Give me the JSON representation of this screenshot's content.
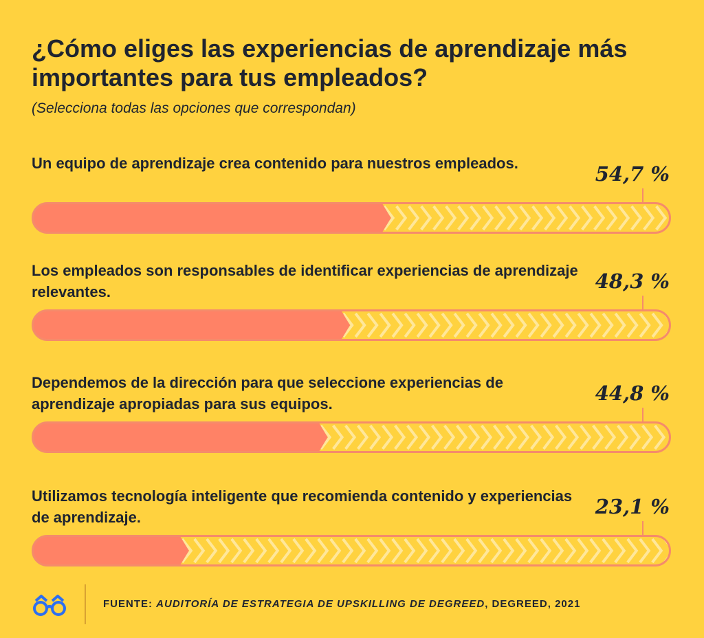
{
  "chart_data": {
    "type": "bar",
    "title": "¿Cómo eliges las experiencias de aprendizaje más importantes para tus empleados?",
    "subtitle": "(Selecciona todas las opciones que correspondan)",
    "categories": [
      "Un equipo de aprendizaje crea contenido para nuestros empleados.",
      "Los empleados son responsables de identificar experiencias de aprendizaje relevantes.",
      "Dependemos de la dirección para que seleccione experiencias de aprendizaje apropiadas para sus equipos.",
      "Utilizamos tecnología inteligente que recomienda contenido y experiencias de aprendizaje."
    ],
    "values": [
      54.7,
      48.3,
      44.8,
      23.1
    ],
    "value_labels": [
      "54,7 %",
      "48,3 %",
      "44,8 %",
      "23,1 %"
    ],
    "xlim": [
      0,
      100
    ],
    "grid": false,
    "colors": {
      "background": "#FFD23F",
      "bar_fill": "#FF8266",
      "bar_track": "#FFD23F",
      "chevron": "#FFE79A",
      "border": "#F58B6B",
      "text": "#1F2430",
      "logo": "#2D6FF0"
    }
  },
  "footer": {
    "prefix": "FUENTE: ",
    "source_title": "AUDITORÍA DE ESTRATEGIA DE UPSKILLING DE DEGREED",
    "suffix": ", DEGREED, 2021",
    "logo_icon": "glasses-icon"
  }
}
